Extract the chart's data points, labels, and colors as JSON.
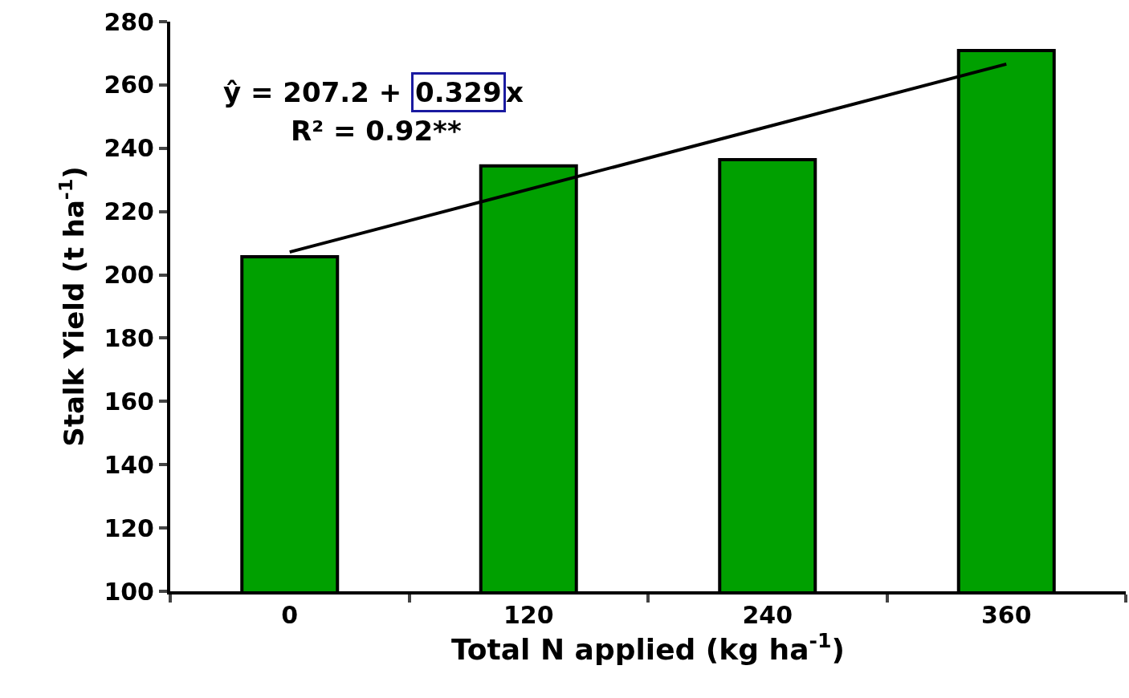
{
  "chart_data": {
    "type": "bar",
    "xlabel": "Total N applied (kg ha$^{-1}$)",
    "ylabel": "Stalk Yield (t ha$^{-1}$)",
    "categories": [
      "0",
      "120",
      "240",
      "360"
    ],
    "series": [
      {
        "color": "#00a000",
        "values": [
          205.7,
          234.4,
          236.4,
          270.9
        ]
      },
      {
        "type": "line",
        "color": "#000000",
        "x": [
          "0",
          "360"
        ],
        "values": [
          207.2,
          266.6
        ]
      }
    ],
    "ylim": [
      100,
      280
    ],
    "yticks": [
      100,
      120,
      140,
      160,
      180,
      200,
      220,
      240,
      260,
      280
    ],
    "annotations": [
      "ŷ = 207.2 + ",
      "0.329",
      "x",
      "R² = 0.92**"
    ],
    "legend": false
  }
}
